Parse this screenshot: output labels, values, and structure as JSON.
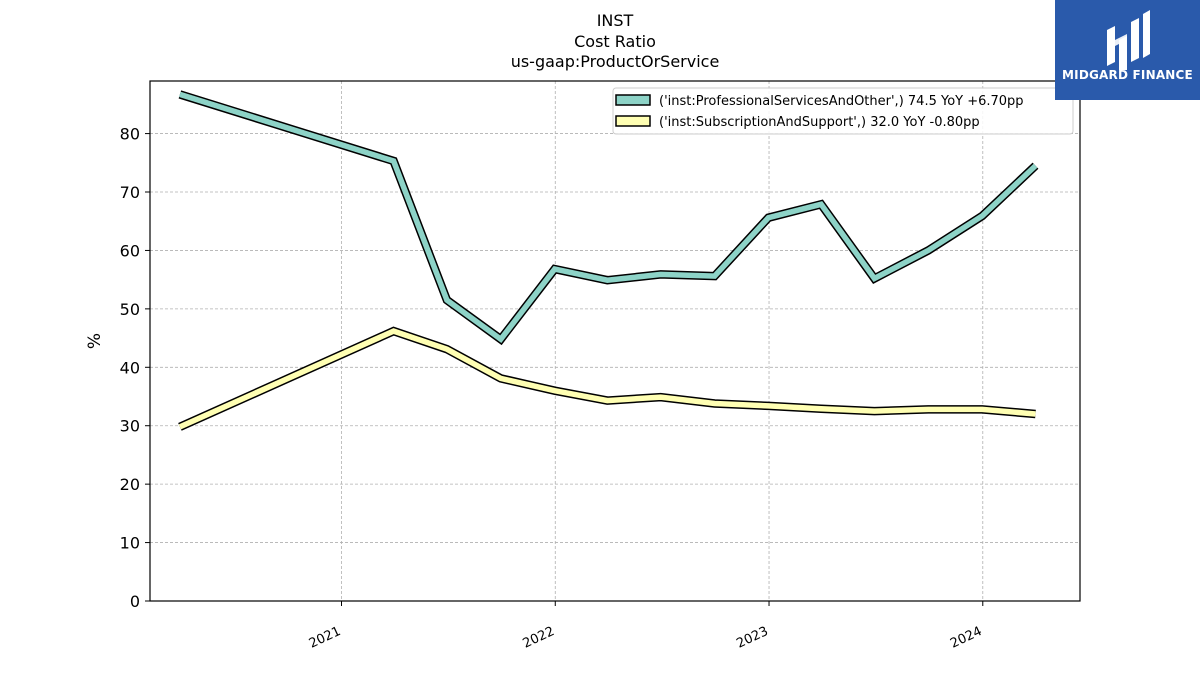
{
  "header": {
    "title_line1": "INST",
    "title_line2": "Cost Ratio",
    "title_line3": "us-gaap:ProductOrService"
  },
  "logo": {
    "text": "MIDGARD FINANCE",
    "background": "#2a5aab",
    "icon": "mf-monogram-icon"
  },
  "chart_data": {
    "type": "line",
    "title": "INST\nCost Ratio\nus-gaap:ProductOrService",
    "xlabel": "",
    "ylabel": "%",
    "ylim": [
      0,
      89
    ],
    "xlim": [
      "2020-02-09",
      "2024-06-15"
    ],
    "yticks": [
      0,
      10,
      20,
      30,
      40,
      50,
      60,
      70,
      80
    ],
    "xticks": [
      {
        "date": "2021-01-01",
        "label": "2021"
      },
      {
        "date": "2022-01-01",
        "label": "2022"
      },
      {
        "date": "2023-01-01",
        "label": "2023"
      },
      {
        "date": "2024-01-01",
        "label": "2024"
      }
    ],
    "grid": true,
    "legend_position": "top-right",
    "x": [
      "2020-03-31",
      "2021-03-31",
      "2021-06-30",
      "2021-09-30",
      "2021-12-31",
      "2022-03-31",
      "2022-06-30",
      "2022-09-30",
      "2022-12-31",
      "2023-03-31",
      "2023-06-30",
      "2023-09-30",
      "2023-12-31",
      "2024-03-31"
    ],
    "series": [
      {
        "name": "('inst:ProfessionalServicesAndOther',) 74.5 YoY +6.70pp",
        "color": "#8dd3c7",
        "values": [
          86.7,
          75.3,
          51.5,
          44.8,
          56.8,
          54.9,
          55.9,
          55.6,
          65.6,
          67.9,
          55.2,
          60.0,
          65.9,
          74.5
        ]
      },
      {
        "name": "('inst:SubscriptionAndSupport',) 32.0 YoY -0.80pp",
        "color": "#ffffb3",
        "values": [
          29.8,
          46.2,
          43.1,
          38.1,
          36.0,
          34.3,
          34.9,
          33.8,
          33.4,
          32.9,
          32.5,
          32.8,
          32.8,
          32.0
        ]
      }
    ]
  }
}
